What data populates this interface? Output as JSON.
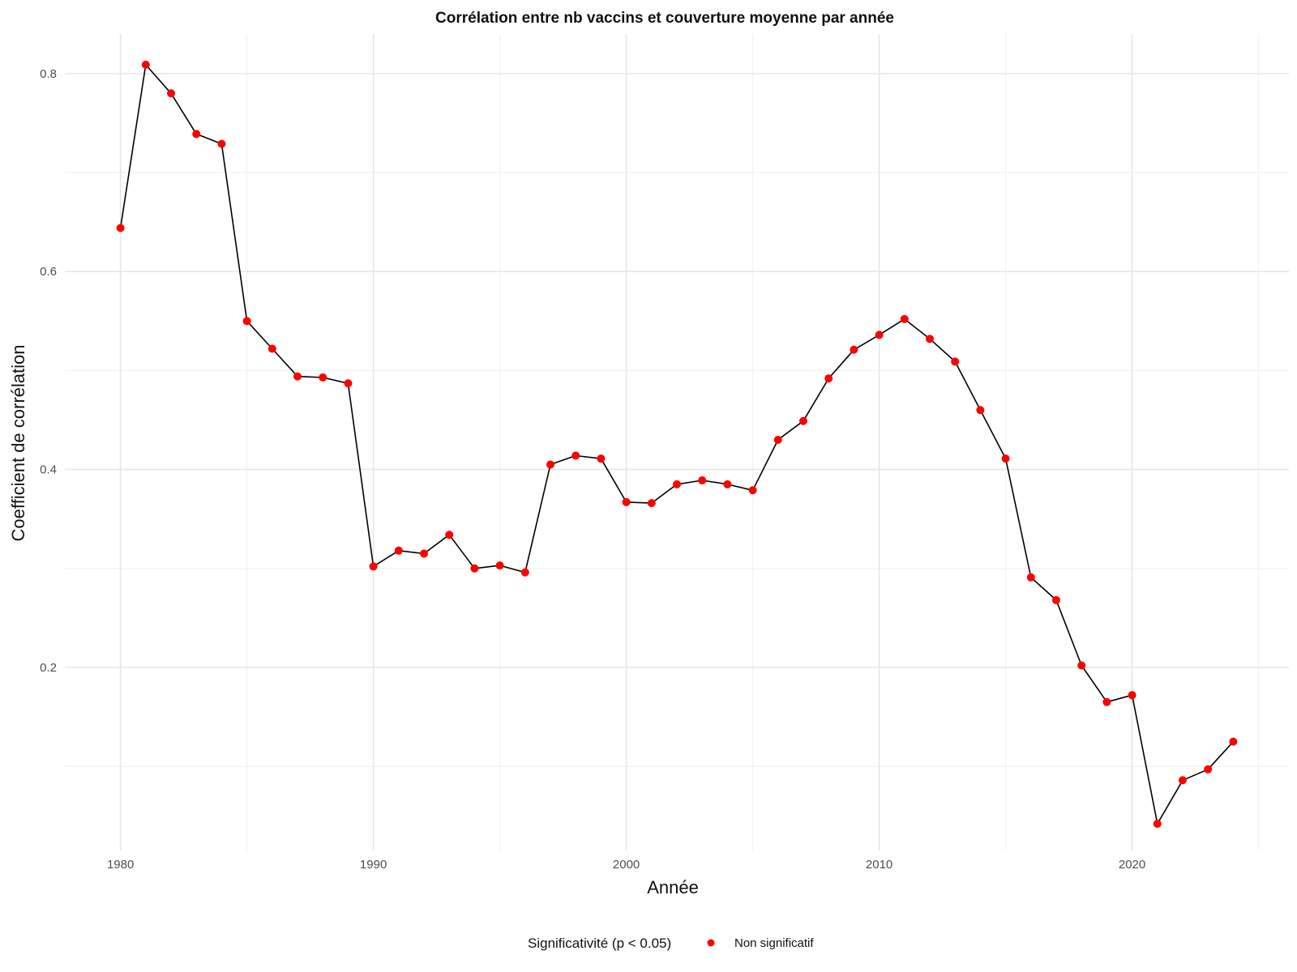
{
  "chart_data": {
    "type": "line",
    "title": "Corrélation entre nb vaccins et couverture moyenne par année",
    "xlabel": "Année",
    "ylabel": "Coefficient de corrélation",
    "xlim": [
      1977.8,
      2026.2
    ],
    "ylim": [
      0.015,
      0.84
    ],
    "x_ticks": [
      1980,
      1990,
      2000,
      2010,
      2020
    ],
    "x_tick_labels": [
      "1980",
      "1990",
      "2000",
      "2010",
      "2020"
    ],
    "y_ticks": [
      0.2,
      0.4,
      0.6,
      0.8
    ],
    "y_tick_labels": [
      "0.2",
      "0.4",
      "0.6",
      "0.8"
    ],
    "grid": true,
    "legend": {
      "position": "bottom",
      "title": "Significativité (p < 0.05)",
      "entries": [
        {
          "label": "Non significatif",
          "color": "#ff0000"
        }
      ]
    },
    "series": [
      {
        "name": "Non significatif",
        "line_color": "#000000",
        "point_color": "#ff0000",
        "x": [
          1980,
          1981,
          1982,
          1983,
          1984,
          1985,
          1986,
          1987,
          1988,
          1989,
          1990,
          1991,
          1992,
          1993,
          1994,
          1995,
          1996,
          1997,
          1998,
          1999,
          2000,
          2001,
          2002,
          2003,
          2004,
          2005,
          2006,
          2007,
          2008,
          2009,
          2010,
          2011,
          2012,
          2013,
          2014,
          2015,
          2016,
          2017,
          2018,
          2019,
          2020,
          2021,
          2022,
          2023,
          2024
        ],
        "y": [
          0.644,
          0.809,
          0.78,
          0.739,
          0.729,
          0.55,
          0.522,
          0.494,
          0.493,
          0.487,
          0.302,
          0.318,
          0.315,
          0.334,
          0.3,
          0.303,
          0.296,
          0.405,
          0.414,
          0.411,
          0.367,
          0.366,
          0.385,
          0.389,
          0.385,
          0.379,
          0.43,
          0.449,
          0.492,
          0.521,
          0.536,
          0.552,
          0.532,
          0.509,
          0.46,
          0.411,
          0.291,
          0.268,
          0.202,
          0.165,
          0.172,
          0.042,
          0.086,
          0.097,
          0.125
        ]
      }
    ]
  }
}
